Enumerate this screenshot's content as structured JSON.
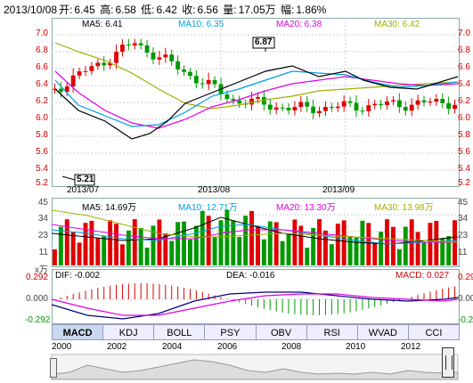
{
  "header": {
    "date": "2013/10/08",
    "open_label": "开:",
    "open": "6.45",
    "high_label": "高:",
    "high": "6.58",
    "low_label": "低:",
    "low": "6.42",
    "close_label": "收:",
    "close": "6.56",
    "vol_label": "量:",
    "vol": "17.05万",
    "amp_label": "幅:",
    "amp": "1.86%"
  },
  "price_panel": {
    "ma5": "MA5: 6.41",
    "ma10": "MA10: 6.35",
    "ma20": "MA20: 6.38",
    "ma30": "MA30: 6.42",
    "y_ticks": [
      "7.0",
      "6.8",
      "6.6",
      "6.4",
      "6.2",
      "6.0",
      "5.8",
      "5.6",
      "5.4",
      "5.2"
    ],
    "x_labels": [
      "2013/07",
      "2013/08",
      "2013/09"
    ],
    "high_marker": "6.87",
    "low_marker": "5.21"
  },
  "volume_panel": {
    "ma5": "MA5: 14.69万",
    "ma10": "MA10: 12.71万",
    "ma20": "MA20: 13.30万",
    "ma30": "MA30: 13.98万",
    "y_ticks": [
      "45",
      "34",
      "23",
      "11"
    ],
    "unit": "x万"
  },
  "macd_panel": {
    "dif": "DIF: -0.002",
    "dea": "DEA: -0.016",
    "macd": "MACD: 0.027",
    "y_ticks": [
      "0.292",
      "0.000",
      "-0.292"
    ]
  },
  "tabs": [
    "MACD",
    "KDJ",
    "BOLL",
    "PSY",
    "OBV",
    "RSI",
    "WVAD",
    "CCI"
  ],
  "timeline_years": [
    "2000",
    "2002",
    "2004",
    "2006",
    "2008",
    "2010",
    "2012"
  ],
  "colors": {
    "up": "#e00000",
    "down": "#009900",
    "ma5": "#000000",
    "ma10": "#00a0e0",
    "ma20": "#e000e0",
    "ma30": "#a0b000"
  }
}
